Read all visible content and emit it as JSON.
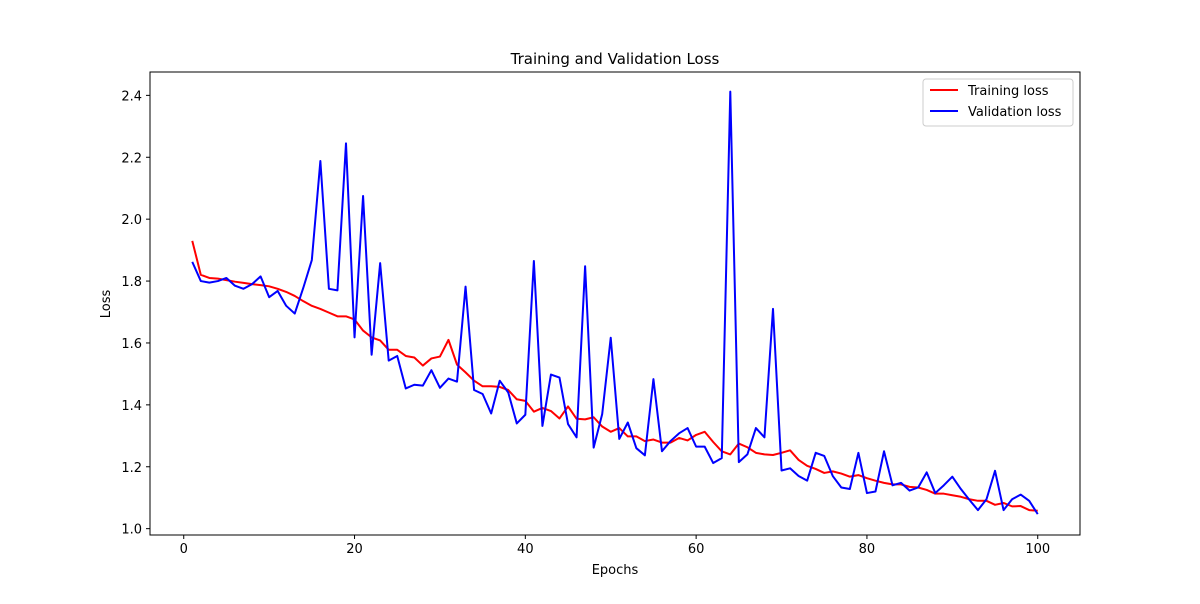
{
  "chart_data": {
    "type": "line",
    "title": "Training and Validation Loss",
    "xlabel": "Epochs",
    "ylabel": "Loss",
    "xlim": [
      -3.95,
      104.95
    ],
    "ylim": [
      0.9795,
      2.4755
    ],
    "x_ticks": [
      0,
      20,
      40,
      60,
      80,
      100
    ],
    "x_tick_labels": [
      "0",
      "20",
      "40",
      "60",
      "80",
      "100"
    ],
    "y_ticks": [
      1.0,
      1.2,
      1.4,
      1.6,
      1.8,
      2.0,
      2.2,
      2.4
    ],
    "y_tick_labels": [
      "1.0",
      "1.2",
      "1.4",
      "1.6",
      "1.8",
      "2.0",
      "2.2",
      "2.4"
    ],
    "grid": false,
    "legend_position": "top-right",
    "x": [
      1,
      2,
      3,
      4,
      5,
      6,
      7,
      8,
      9,
      10,
      11,
      12,
      13,
      14,
      15,
      16,
      17,
      18,
      19,
      20,
      21,
      22,
      23,
      24,
      25,
      26,
      27,
      28,
      29,
      30,
      31,
      32,
      33,
      34,
      35,
      36,
      37,
      38,
      39,
      40,
      41,
      42,
      43,
      44,
      45,
      46,
      47,
      48,
      49,
      50,
      51,
      52,
      53,
      54,
      55,
      56,
      57,
      58,
      59,
      60,
      61,
      62,
      63,
      64,
      65,
      66,
      67,
      68,
      69,
      70,
      71,
      72,
      73,
      74,
      75,
      76,
      77,
      78,
      79,
      80,
      81,
      82,
      83,
      84,
      85,
      86,
      87,
      88,
      89,
      90,
      91,
      92,
      93,
      94,
      95,
      96,
      97,
      98,
      99,
      100
    ],
    "series": [
      {
        "name": "Training loss",
        "color": "#ff0000",
        "values": [
          1.93,
          1.82,
          1.81,
          1.808,
          1.803,
          1.798,
          1.794,
          1.79,
          1.787,
          1.783,
          1.775,
          1.765,
          1.752,
          1.735,
          1.72,
          1.71,
          1.698,
          1.686,
          1.686,
          1.676,
          1.64,
          1.618,
          1.608,
          1.578,
          1.578,
          1.558,
          1.553,
          1.527,
          1.55,
          1.556,
          1.61,
          1.53,
          1.505,
          1.478,
          1.46,
          1.46,
          1.458,
          1.448,
          1.418,
          1.413,
          1.378,
          1.39,
          1.38,
          1.356,
          1.395,
          1.355,
          1.353,
          1.36,
          1.33,
          1.313,
          1.325,
          1.298,
          1.298,
          1.283,
          1.288,
          1.278,
          1.278,
          1.293,
          1.285,
          1.303,
          1.313,
          1.28,
          1.25,
          1.24,
          1.275,
          1.263,
          1.245,
          1.24,
          1.238,
          1.245,
          1.253,
          1.222,
          1.203,
          1.193,
          1.18,
          1.185,
          1.178,
          1.168,
          1.173,
          1.163,
          1.155,
          1.148,
          1.143,
          1.143,
          1.135,
          1.133,
          1.125,
          1.113,
          1.113,
          1.108,
          1.103,
          1.095,
          1.09,
          1.09,
          1.077,
          1.083,
          1.072,
          1.073,
          1.06,
          1.058
        ]
      },
      {
        "name": "Validation loss",
        "color": "#0000ff",
        "values": [
          1.862,
          1.8,
          1.795,
          1.8,
          1.81,
          1.785,
          1.775,
          1.79,
          1.815,
          1.748,
          1.768,
          1.72,
          1.695,
          1.778,
          1.868,
          2.188,
          1.775,
          1.77,
          2.245,
          1.618,
          2.075,
          1.562,
          1.858,
          1.543,
          1.558,
          1.453,
          1.465,
          1.462,
          1.512,
          1.455,
          1.485,
          1.475,
          1.782,
          1.448,
          1.435,
          1.372,
          1.478,
          1.44,
          1.34,
          1.368,
          1.865,
          1.332,
          1.498,
          1.488,
          1.338,
          1.295,
          1.848,
          1.262,
          1.37,
          1.617,
          1.29,
          1.343,
          1.26,
          1.237,
          1.483,
          1.25,
          1.283,
          1.308,
          1.325,
          1.265,
          1.265,
          1.212,
          1.228,
          2.412,
          1.215,
          1.24,
          1.325,
          1.295,
          1.71,
          1.188,
          1.195,
          1.17,
          1.155,
          1.245,
          1.235,
          1.17,
          1.133,
          1.128,
          1.245,
          1.115,
          1.12,
          1.25,
          1.14,
          1.148,
          1.123,
          1.133,
          1.182,
          1.115,
          1.14,
          1.168,
          1.128,
          1.093,
          1.06,
          1.095,
          1.187,
          1.06,
          1.095,
          1.11,
          1.09,
          1.047
        ]
      }
    ]
  }
}
